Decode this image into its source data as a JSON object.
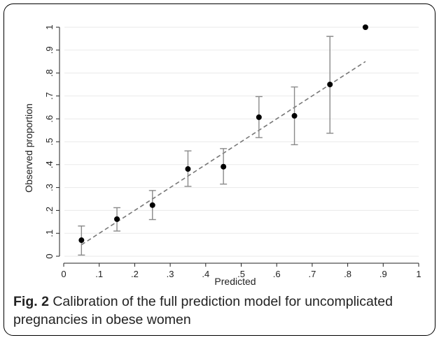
{
  "chart_data": {
    "type": "scatter",
    "xlabel": "Predicted",
    "ylabel": "Observed proportion",
    "xlim": [
      0,
      1
    ],
    "ylim": [
      0,
      1
    ],
    "xticks": [
      "0",
      ".1",
      ".2",
      ".3",
      ".4",
      ".5",
      ".6",
      ".7",
      ".8",
      ".9",
      "1"
    ],
    "yticks": [
      "0",
      ".1",
      ".2",
      ".3",
      ".4",
      ".5",
      ".6",
      ".7",
      ".8",
      ".9",
      "1"
    ],
    "grid": true,
    "points": [
      {
        "x": 0.05,
        "y": 0.07,
        "lo": 0.005,
        "hi": 0.132
      },
      {
        "x": 0.15,
        "y": 0.162,
        "lo": 0.11,
        "hi": 0.212
      },
      {
        "x": 0.25,
        "y": 0.223,
        "lo": 0.16,
        "hi": 0.287
      },
      {
        "x": 0.35,
        "y": 0.381,
        "lo": 0.305,
        "hi": 0.46
      },
      {
        "x": 0.45,
        "y": 0.391,
        "lo": 0.315,
        "hi": 0.47
      },
      {
        "x": 0.55,
        "y": 0.607,
        "lo": 0.518,
        "hi": 0.697
      },
      {
        "x": 0.65,
        "y": 0.613,
        "lo": 0.487,
        "hi": 0.739
      },
      {
        "x": 0.75,
        "y": 0.75,
        "lo": 0.537,
        "hi": 0.96
      },
      {
        "x": 0.85,
        "y": 1.0,
        "lo": null,
        "hi": null
      }
    ],
    "reference_line": {
      "from": [
        0.05,
        0.05
      ],
      "to": [
        0.85,
        0.85
      ],
      "style": "dashed"
    },
    "colors": {
      "points": "#000000",
      "error_bars": "#8a8a8a",
      "line": "#777777",
      "grid": "#eaeaea"
    }
  },
  "caption": {
    "label": "Fig. 2",
    "text": "Calibration of the full prediction model for uncomplicated pregnancies in obese women"
  }
}
